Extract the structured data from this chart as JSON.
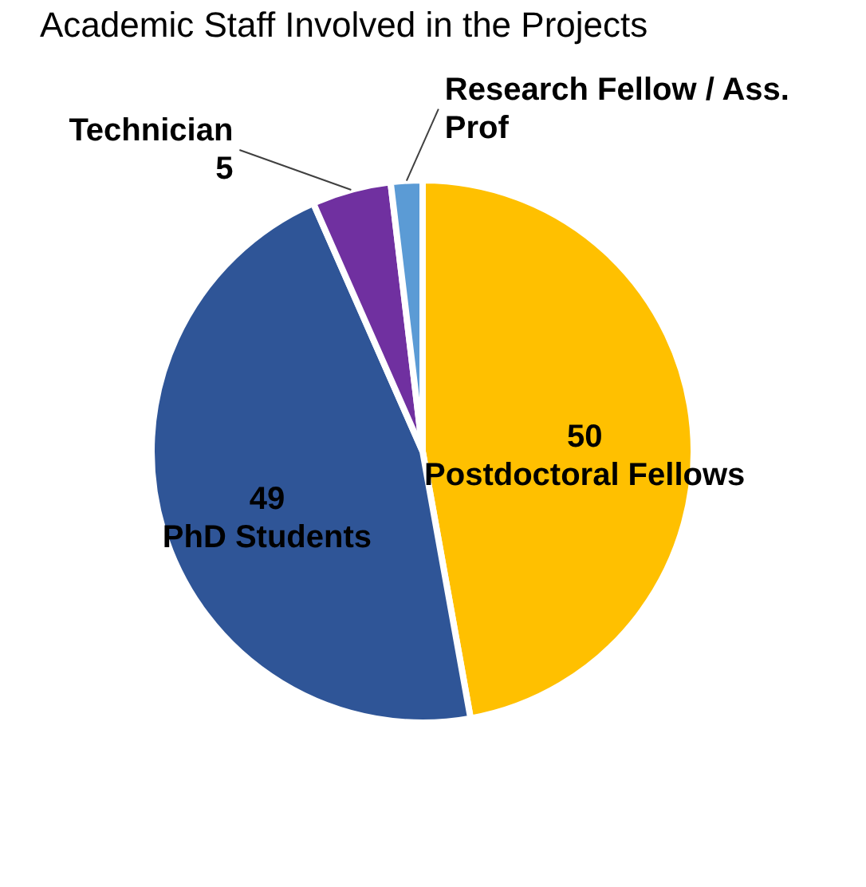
{
  "chart_data": {
    "type": "pie",
    "title": "Academic Staff Involved in the Projects",
    "categories": [
      "Postdoctoral Fellows",
      "PhD Students",
      "Technician",
      "Research Fellow / Ass. Prof"
    ],
    "values": [
      50,
      49,
      5,
      2
    ],
    "value_labels": [
      "50",
      "49",
      "5",
      null
    ],
    "colors": [
      "#ffc000",
      "#2f5597",
      "#7030a0",
      "#5b9bd5"
    ],
    "legend": false
  }
}
